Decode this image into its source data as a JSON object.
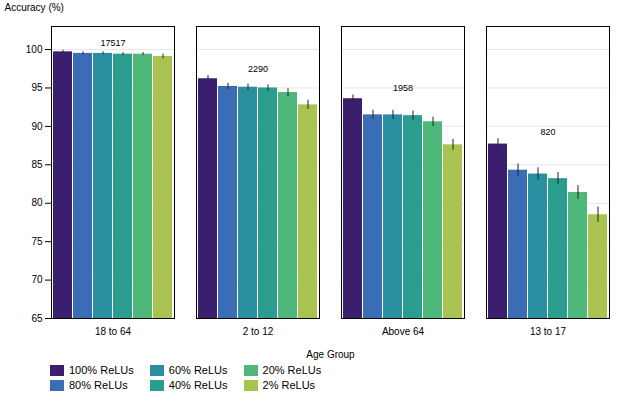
{
  "chart_data": {
    "type": "bar",
    "xlabel": "Age Group",
    "ylabel": "Accuracy (%)",
    "categories": [
      "18 to 64",
      "2 to 12",
      "Above 64",
      "13 to 17"
    ],
    "series": [
      {
        "name": "100% ReLUs",
        "color": "#3b1f6e",
        "values": [
          99.7,
          96.2,
          93.6,
          87.7
        ],
        "errors": [
          0.2,
          0.4,
          0.5,
          0.7
        ]
      },
      {
        "name": "80% ReLUs",
        "color": "#3a6db5",
        "values": [
          99.5,
          95.2,
          91.5,
          84.3
        ],
        "errors": [
          0.2,
          0.4,
          0.6,
          0.8
        ]
      },
      {
        "name": "60% ReLUs",
        "color": "#2a8fa0",
        "values": [
          99.5,
          95.1,
          91.5,
          83.8
        ],
        "errors": [
          0.2,
          0.4,
          0.6,
          0.8
        ]
      },
      {
        "name": "40% ReLUs",
        "color": "#2a9d8f",
        "values": [
          99.4,
          95.0,
          91.4,
          83.2
        ],
        "errors": [
          0.2,
          0.4,
          0.6,
          0.8
        ]
      },
      {
        "name": "20% ReLUs",
        "color": "#4db87a",
        "values": [
          99.4,
          94.4,
          90.6,
          81.4
        ],
        "errors": [
          0.2,
          0.5,
          0.6,
          0.9
        ]
      },
      {
        "name": "2% ReLUs",
        "color": "#a8c34f",
        "values": [
          99.1,
          92.8,
          87.6,
          78.5
        ],
        "errors": [
          0.3,
          0.6,
          0.7,
          1.0
        ]
      }
    ],
    "annotations": [
      {
        "category": "18 to 64",
        "text": "17517"
      },
      {
        "category": "2 to 12",
        "text": "2290"
      },
      {
        "category": "Above 64",
        "text": "1958"
      },
      {
        "category": "13 to 17",
        "text": "820"
      }
    ],
    "ylim": [
      65,
      103
    ],
    "yticks": [
      65,
      70,
      75,
      80,
      85,
      90,
      95,
      100
    ],
    "grid": true,
    "legend": "lower left"
  }
}
